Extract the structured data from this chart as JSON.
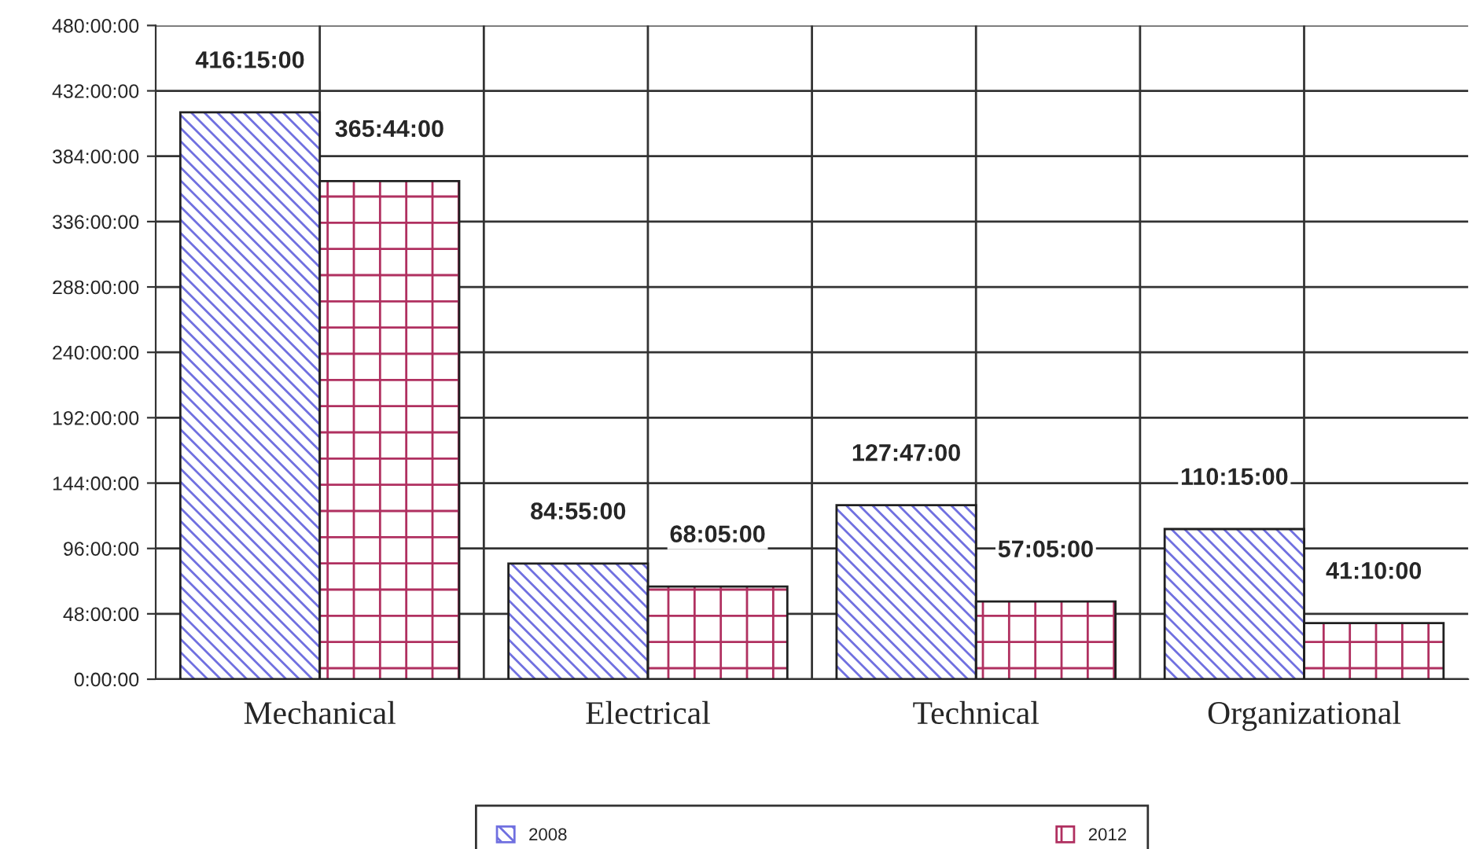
{
  "chart_data": {
    "type": "bar",
    "categories": [
      "Mechanical",
      "Electrical",
      "Technical",
      "Organizational"
    ],
    "series": [
      {
        "name": "2008",
        "color": "#7070e0",
        "values": [
          416.25,
          84.9167,
          127.7833,
          110.25
        ],
        "value_labels": [
          "416:15:00",
          "84:55:00",
          "127:47:00",
          "110:15:00"
        ]
      },
      {
        "name": "2012",
        "color": "#b03060",
        "values": [
          365.7333,
          68.0833,
          57.0833,
          41.1667
        ],
        "value_labels": [
          "365:44:00",
          "68:05:00",
          "57:05:00",
          "41:10:00"
        ]
      }
    ],
    "ylim": [
      0,
      480
    ],
    "yticks": [
      {
        "value": 0,
        "label": "0:00:00"
      },
      {
        "value": 48,
        "label": "48:00:00"
      },
      {
        "value": 96,
        "label": "96:00:00"
      },
      {
        "value": 144,
        "label": "144:00:00"
      },
      {
        "value": 192,
        "label": "192:00:00"
      },
      {
        "value": 240,
        "label": "240:00:00"
      },
      {
        "value": 288,
        "label": "288:00:00"
      },
      {
        "value": 336,
        "label": "336:00:00"
      },
      {
        "value": 384,
        "label": "384:00:00"
      },
      {
        "value": 432,
        "label": "432:00:00"
      },
      {
        "value": 480,
        "label": "480:00:00"
      }
    ],
    "grid": true,
    "legend": "bottom"
  }
}
